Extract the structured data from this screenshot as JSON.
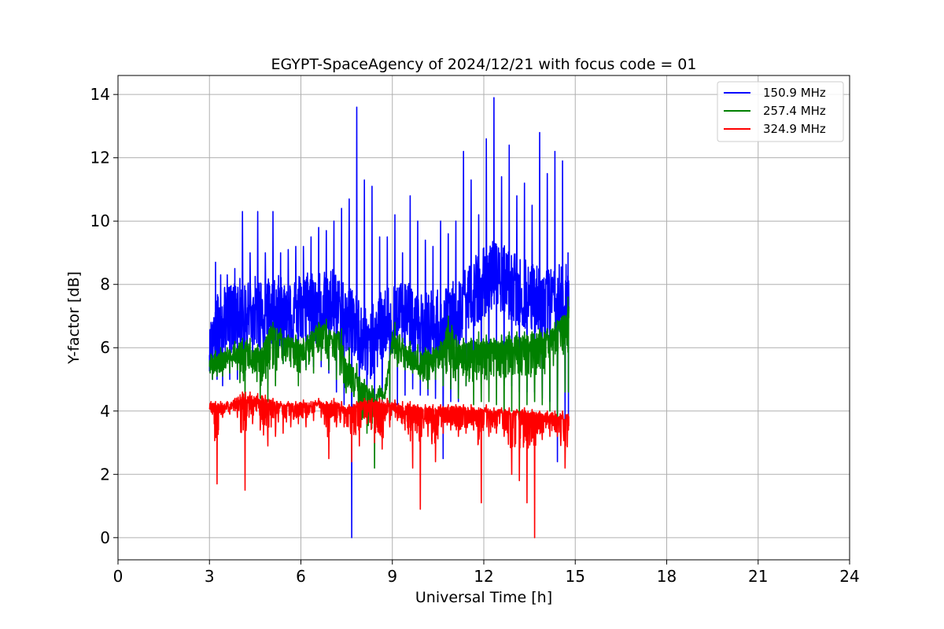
{
  "chart_data": {
    "type": "line",
    "title": "EGYPT-SpaceAgency of 2024/12/21 with focus code = 01",
    "xlabel": "Universal Time [h]",
    "ylabel": "Y-factor [dB]",
    "xlim": [
      0,
      24
    ],
    "ylim": [
      -0.7,
      14.6
    ],
    "xticks": [
      0,
      3,
      6,
      9,
      12,
      15,
      18,
      21,
      24
    ],
    "yticks": [
      0,
      2,
      4,
      6,
      8,
      10,
      12,
      14
    ],
    "grid": true,
    "legend_position": "top-right",
    "series": [
      {
        "name": "150.9 MHz",
        "color": "#0000ff",
        "x": [
          3.0,
          3.15,
          3.3,
          3.5,
          3.75,
          4.0,
          4.25,
          4.5,
          4.75,
          5.0,
          5.25,
          5.5,
          5.75,
          6.0,
          6.25,
          6.5,
          6.75,
          7.0,
          7.25,
          7.5,
          7.75,
          8.0,
          8.25,
          8.5,
          8.75,
          9.0,
          9.25,
          9.5,
          9.75,
          10.0,
          10.25,
          10.5,
          10.75,
          11.0,
          11.25,
          11.5,
          11.75,
          12.0,
          12.25,
          12.5,
          12.75,
          13.0,
          13.25,
          13.5,
          13.75,
          14.0,
          14.25,
          14.5,
          14.75
        ],
        "y": [
          6.0,
          6.4,
          6.6,
          6.8,
          6.9,
          7.0,
          7.0,
          7.1,
          7.0,
          7.0,
          7.1,
          7.0,
          7.0,
          7.2,
          7.3,
          7.1,
          7.2,
          7.4,
          7.0,
          6.8,
          6.6,
          6.3,
          6.0,
          6.4,
          6.7,
          6.8,
          7.0,
          6.9,
          6.7,
          6.6,
          6.6,
          6.7,
          6.8,
          6.9,
          7.2,
          7.5,
          7.8,
          8.0,
          8.2,
          8.2,
          8.0,
          7.8,
          7.6,
          7.6,
          7.4,
          7.4,
          7.3,
          7.5,
          7.6
        ],
        "y_max": [
          6.8,
          8.7,
          8.3,
          8.3,
          8.5,
          10.3,
          9.0,
          10.3,
          9.0,
          10.3,
          9.0,
          9.1,
          9.2,
          9.2,
          9.5,
          9.8,
          9.7,
          10.0,
          10.4,
          10.7,
          13.6,
          11.3,
          11.1,
          9.5,
          9.5,
          10.2,
          9.0,
          10.8,
          10.0,
          9.4,
          9.2,
          10.0,
          9.6,
          10.0,
          12.2,
          11.3,
          10.2,
          12.6,
          13.9,
          11.4,
          12.4,
          10.8,
          11.2,
          10.5,
          12.8,
          11.5,
          12.2,
          11.9,
          9.0
        ],
        "y_min": [
          5.0,
          5.0,
          4.8,
          5.0,
          5.0,
          5.1,
          5.3,
          5.2,
          5.2,
          5.3,
          5.5,
          5.5,
          5.6,
          5.4,
          5.4,
          5.4,
          5.2,
          4.6,
          4.2,
          0.0,
          4.0,
          4.0,
          4.0,
          4.2,
          3.9,
          4.2,
          4.5,
          4.7,
          4.5,
          4.5,
          4.4,
          2.5,
          4.3,
          4.3,
          4.8,
          5.0,
          5.2,
          5.0,
          5.0,
          4.8,
          4.8,
          4.6,
          4.6,
          4.6,
          4.4,
          4.3,
          2.4,
          3.3,
          3.7
        ]
      },
      {
        "name": "257.4 MHz",
        "color": "#008000",
        "x": [
          3.0,
          3.15,
          3.3,
          3.5,
          3.75,
          4.0,
          4.25,
          4.5,
          4.75,
          5.0,
          5.25,
          5.5,
          5.75,
          6.0,
          6.25,
          6.5,
          6.75,
          7.0,
          7.25,
          7.5,
          7.75,
          8.0,
          8.25,
          8.5,
          8.75,
          9.0,
          9.25,
          9.5,
          9.75,
          10.0,
          10.25,
          10.5,
          10.75,
          11.0,
          11.25,
          11.5,
          11.75,
          12.0,
          12.25,
          12.5,
          12.75,
          13.0,
          13.25,
          13.5,
          13.75,
          14.0,
          14.25,
          14.5,
          14.75
        ],
        "y": [
          5.4,
          5.5,
          5.5,
          5.6,
          5.7,
          5.8,
          5.9,
          5.7,
          5.8,
          6.4,
          6.3,
          6.1,
          6.1,
          6.0,
          6.2,
          6.4,
          6.5,
          6.2,
          6.3,
          5.4,
          5.0,
          4.6,
          4.5,
          4.5,
          4.5,
          6.2,
          6.0,
          5.8,
          5.6,
          5.5,
          5.6,
          5.8,
          6.0,
          6.0,
          5.9,
          5.9,
          6.0,
          5.9,
          5.9,
          6.0,
          6.1,
          6.1,
          6.1,
          6.1,
          6.2,
          6.2,
          6.3,
          6.6,
          6.9
        ],
        "y_max": [
          5.8,
          5.9,
          6.0,
          6.0,
          6.2,
          6.3,
          6.3,
          6.1,
          6.2,
          6.8,
          6.6,
          6.4,
          6.4,
          6.3,
          6.5,
          6.8,
          6.9,
          6.5,
          6.6,
          6.0,
          5.5,
          5.0,
          4.8,
          4.8,
          4.8,
          6.8,
          6.3,
          6.2,
          6.1,
          6.0,
          6.0,
          6.2,
          7.0,
          6.4,
          6.3,
          6.3,
          6.5,
          6.4,
          6.3,
          6.4,
          6.5,
          6.5,
          6.5,
          6.5,
          6.6,
          6.6,
          6.8,
          7.0,
          7.6
        ],
        "y_min": [
          5.0,
          5.1,
          5.1,
          5.2,
          5.3,
          4.3,
          5.2,
          4.4,
          4.3,
          4.8,
          5.5,
          5.4,
          4.8,
          5.3,
          5.2,
          5.6,
          5.3,
          5.0,
          4.9,
          4.6,
          4.2,
          3.3,
          2.2,
          4.3,
          4.2,
          5.4,
          5.3,
          5.2,
          5.0,
          4.7,
          5.0,
          4.8,
          4.7,
          4.4,
          4.8,
          4.2,
          4.3,
          4.3,
          4.2,
          3.6,
          4.0,
          3.8,
          4.2,
          4.3,
          4.2,
          4.0,
          3.7,
          4.6,
          4.6
        ]
      },
      {
        "name": "324.9 MHz",
        "color": "#ff0000",
        "x": [
          3.0,
          3.15,
          3.3,
          3.5,
          3.75,
          4.0,
          4.25,
          4.5,
          4.75,
          5.0,
          5.25,
          5.5,
          5.75,
          6.0,
          6.25,
          6.5,
          6.75,
          7.0,
          7.25,
          7.5,
          7.75,
          8.0,
          8.25,
          8.5,
          8.75,
          9.0,
          9.25,
          9.5,
          9.75,
          10.0,
          10.25,
          10.5,
          10.75,
          11.0,
          11.25,
          11.5,
          11.75,
          12.0,
          12.25,
          12.5,
          12.75,
          13.0,
          13.25,
          13.5,
          13.75,
          14.0,
          14.25,
          14.5,
          14.75
        ],
        "y": [
          4.1,
          4.1,
          4.1,
          4.1,
          4.15,
          4.3,
          4.4,
          4.3,
          4.3,
          4.2,
          4.15,
          4.1,
          4.1,
          4.15,
          4.1,
          4.2,
          4.15,
          4.2,
          4.1,
          4.0,
          4.1,
          4.2,
          4.2,
          4.2,
          4.2,
          4.15,
          4.1,
          4.1,
          4.05,
          4.0,
          4.0,
          4.0,
          4.0,
          4.0,
          4.0,
          4.0,
          3.95,
          4.0,
          3.9,
          3.9,
          3.9,
          3.85,
          3.9,
          3.85,
          3.8,
          3.8,
          3.8,
          3.75,
          3.7
        ],
        "y_max": [
          4.3,
          4.3,
          4.3,
          4.3,
          4.4,
          4.6,
          4.6,
          4.55,
          4.5,
          4.4,
          4.3,
          4.3,
          4.3,
          4.35,
          4.3,
          4.4,
          4.3,
          4.4,
          4.3,
          4.2,
          4.3,
          4.4,
          4.4,
          4.4,
          4.4,
          4.35,
          4.3,
          4.3,
          4.2,
          4.2,
          4.2,
          4.2,
          4.2,
          4.2,
          4.2,
          4.2,
          4.1,
          4.2,
          4.1,
          4.1,
          4.1,
          4.05,
          4.1,
          4.05,
          4.0,
          4.0,
          4.0,
          4.0,
          3.9
        ],
        "y_min": [
          3.9,
          1.7,
          3.8,
          3.9,
          3.8,
          1.5,
          3.6,
          3.4,
          2.9,
          3.2,
          3.3,
          3.5,
          3.6,
          3.5,
          3.7,
          3.8,
          2.5,
          3.5,
          3.5,
          2.4,
          2.9,
          3.6,
          3.0,
          2.8,
          3.5,
          3.7,
          3.4,
          2.2,
          0.9,
          3.2,
          2.4,
          3.3,
          3.4,
          3.2,
          3.3,
          3.4,
          1.1,
          3.2,
          3.3,
          3.2,
          2.0,
          1.8,
          1.1,
          0.0,
          3.1,
          3.2,
          3.2,
          2.2,
          3.4
        ]
      }
    ]
  }
}
